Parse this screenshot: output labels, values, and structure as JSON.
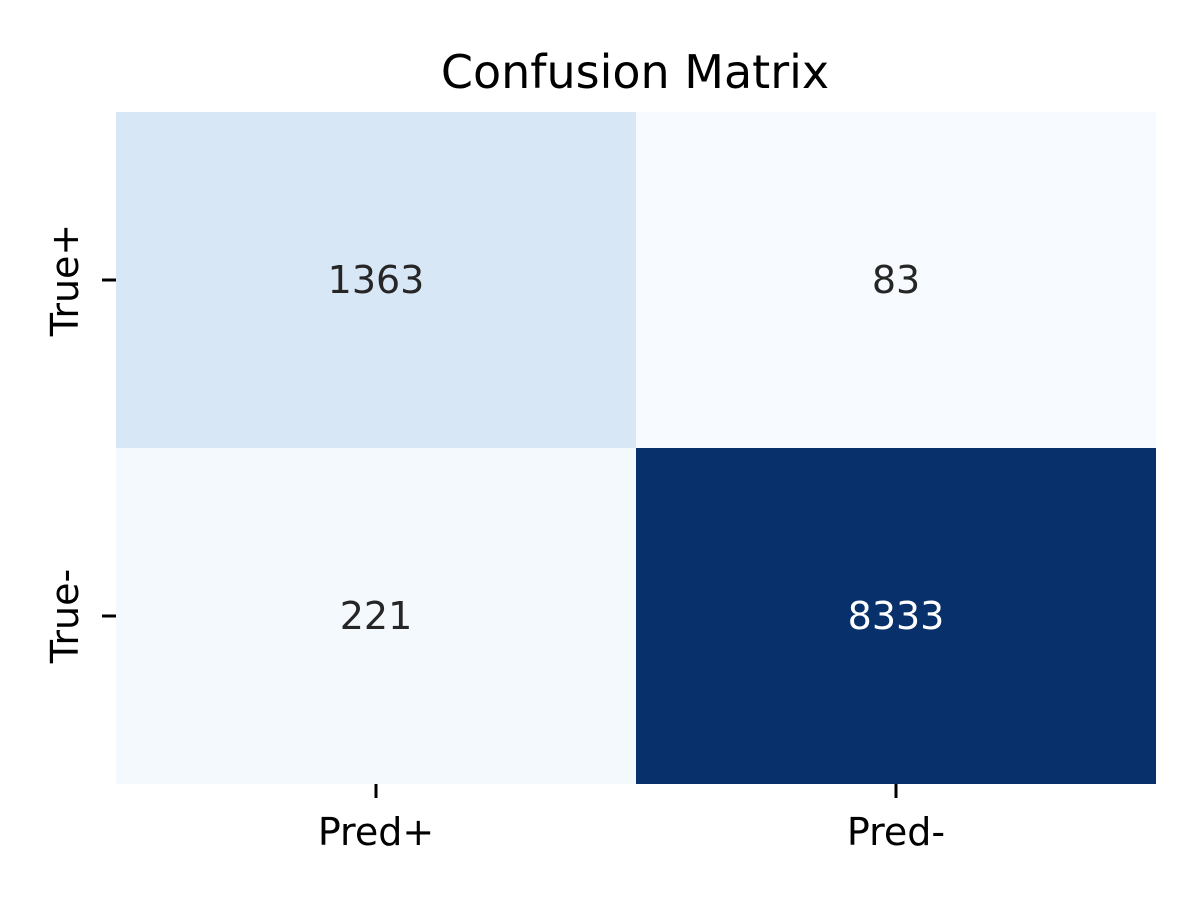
{
  "chart_data": {
    "type": "heatmap",
    "title": "Confusion Matrix",
    "xlabel": "",
    "ylabel": "",
    "x_categories": [
      "Pred+",
      "Pred-"
    ],
    "y_categories": [
      "True+",
      "True-"
    ],
    "values": [
      [
        1363,
        83
      ],
      [
        221,
        8333
      ]
    ],
    "colormap": "Blues",
    "color_range": [
      83,
      8333
    ],
    "colorbar": false,
    "grid": false,
    "text_colors": {
      "light_cell": "#262626",
      "dark_cell": "#ffffff"
    }
  }
}
